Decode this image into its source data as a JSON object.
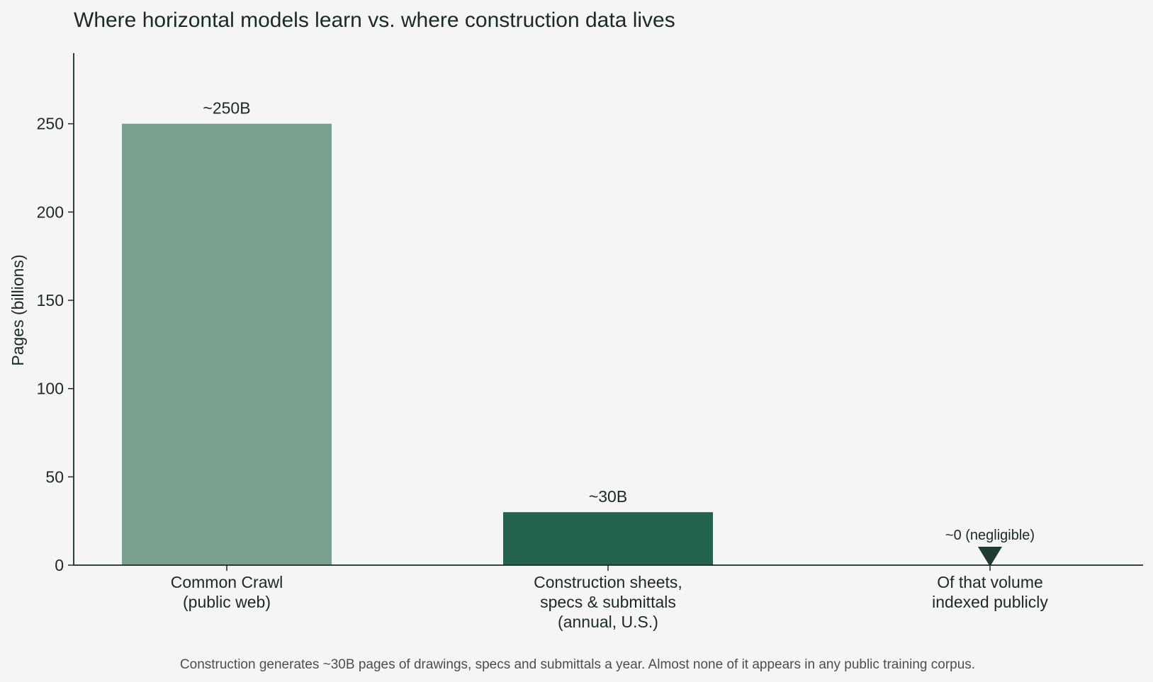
{
  "chart_data": {
    "type": "bar",
    "title": "Where horizontal models learn vs. where construction data lives",
    "xlabel": "",
    "ylabel": "Pages (billions)",
    "ylim": [
      0,
      290
    ],
    "yticks": [
      0,
      50,
      100,
      150,
      200,
      250
    ],
    "grid": false,
    "categories": [
      [
        "Common Crawl",
        "(public web)"
      ],
      [
        "Construction sheets,",
        "specs & submittals",
        "(annual, U.S.)"
      ],
      [
        "Of that volume",
        "indexed publicly"
      ]
    ],
    "values": [
      250,
      30,
      0
    ],
    "data_labels": [
      "~250B",
      "~30B",
      "~0 (negligible)"
    ],
    "bar_colors": [
      "#7aa18f",
      "#226350",
      "#1f3a30"
    ],
    "marker_for_zero": "downward-triangle",
    "caption": "Construction generates ~30B pages of drawings, specs and submittals a year. Almost none of it appears in any public training corpus."
  }
}
